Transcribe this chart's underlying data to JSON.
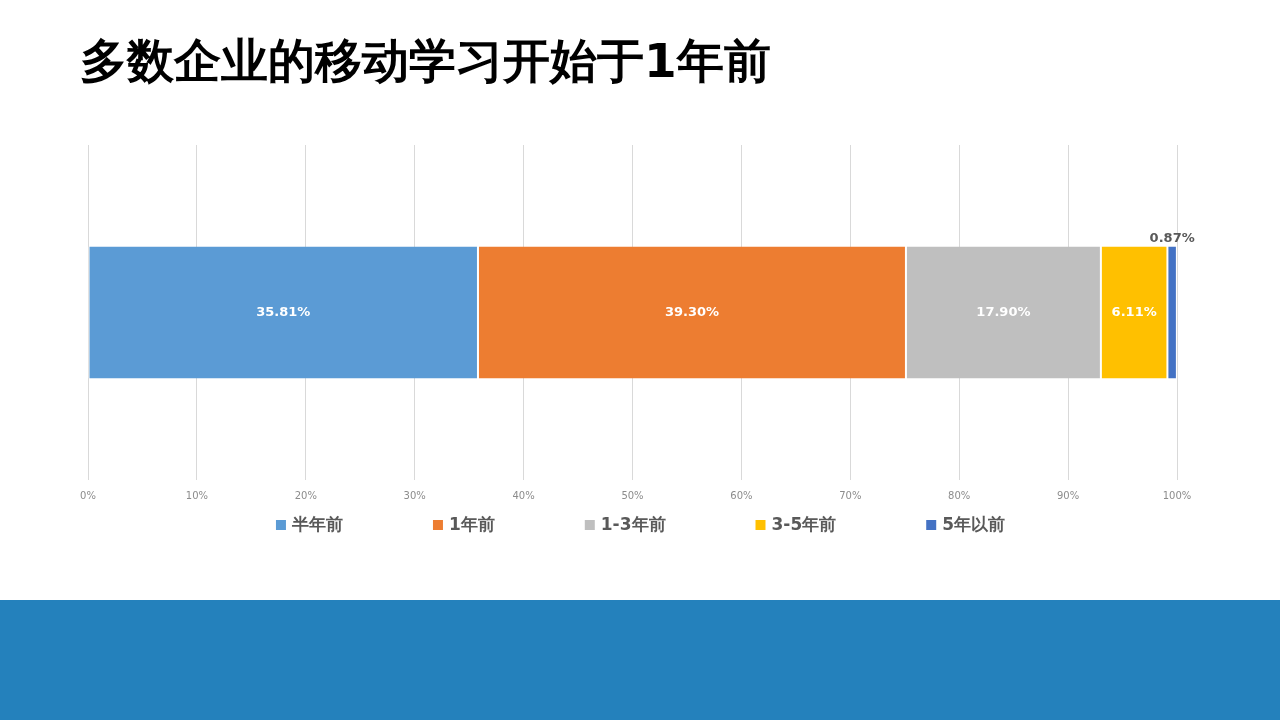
{
  "chart_data": {
    "type": "bar",
    "title": "多数企业的移动学习开始于1年前",
    "orientation": "horizontal",
    "stacked": true,
    "categories": [
      null
    ],
    "series": [
      {
        "name": "半年前",
        "color": "#5b9bd5",
        "values": [
          35.81
        ],
        "value_labels": [
          "35.81%"
        ]
      },
      {
        "name": "1年前",
        "color": "#ed7d31",
        "values": [
          39.3
        ],
        "value_labels": [
          "39.30%"
        ]
      },
      {
        "name": "1-3年前",
        "color": "#bfbfbf",
        "values": [
          17.9
        ],
        "value_labels": [
          "17.90%"
        ]
      },
      {
        "name": "3-5年前",
        "color": "#ffc000",
        "values": [
          6.11
        ],
        "value_labels": [
          "6.11%"
        ]
      },
      {
        "name": "5年以前",
        "color": "#4472c4",
        "values": [
          0.87
        ],
        "value_labels": [
          "0.87%"
        ]
      }
    ],
    "xlim": [
      0,
      100
    ],
    "xticks": [
      {
        "value": 0,
        "label": "0%"
      },
      {
        "value": 10,
        "label": "10%"
      },
      {
        "value": 20,
        "label": "20%"
      },
      {
        "value": 30,
        "label": "30%"
      },
      {
        "value": 40,
        "label": "40%"
      },
      {
        "value": 50,
        "label": "50%"
      },
      {
        "value": 60,
        "label": "60%"
      },
      {
        "value": 70,
        "label": "70%"
      },
      {
        "value": 80,
        "label": "80%"
      },
      {
        "value": 90,
        "label": "90%"
      },
      {
        "value": 100,
        "label": "100%"
      }
    ],
    "grid": "x",
    "legend": "bottom"
  }
}
